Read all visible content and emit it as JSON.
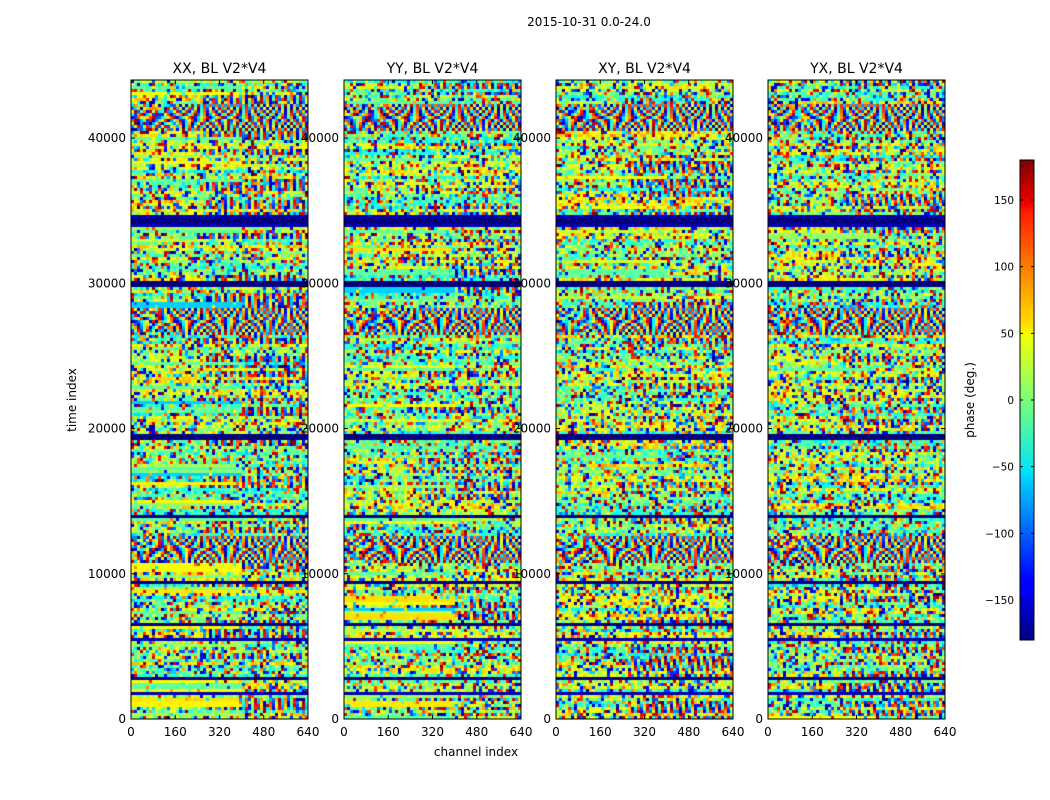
{
  "figure": {
    "suptitle": "2015-10-31 0.0-24.0"
  },
  "chart_data": {
    "type": "heatmap",
    "suptitle": "2015-10-31 0.0-24.0",
    "colormap": "jet",
    "xlabel": "channel index",
    "ylabel": "time index",
    "xlim": [
      0,
      640
    ],
    "ylim": [
      0,
      44000
    ],
    "xticks": [
      0,
      160,
      320,
      480,
      640
    ],
    "yticks": [
      0,
      10000,
      20000,
      30000,
      40000
    ],
    "panels": [
      {
        "title": "XX, BL V2*V4",
        "polarization": "XX"
      },
      {
        "title": "YY, BL V2*V4",
        "polarization": "YY"
      },
      {
        "title": "XY, BL V2*V4",
        "polarization": "XY"
      },
      {
        "title": "YX, BL V2*V4",
        "polarization": "YX"
      }
    ],
    "colorbar": {
      "label": "phase (deg.)",
      "range": [
        -180,
        180
      ],
      "ticks": [
        -150,
        -100,
        -50,
        0,
        50,
        100,
        150
      ],
      "tick_labels": [
        "−150",
        "−100",
        "−50",
        "0",
        "50",
        "100",
        "150"
      ]
    },
    "bad_row_bands_time_index": [
      [
        34000,
        34800
      ],
      [
        29900,
        30200
      ],
      [
        19400,
        19800
      ],
      [
        14000,
        14200
      ],
      [
        9300,
        9600
      ],
      [
        6600,
        6800
      ],
      [
        5500,
        5700
      ],
      [
        1700,
        1900
      ],
      [
        2700,
        2900
      ]
    ],
    "fringe_bands_time_index": [
      41500,
      11800,
      27500
    ]
  }
}
